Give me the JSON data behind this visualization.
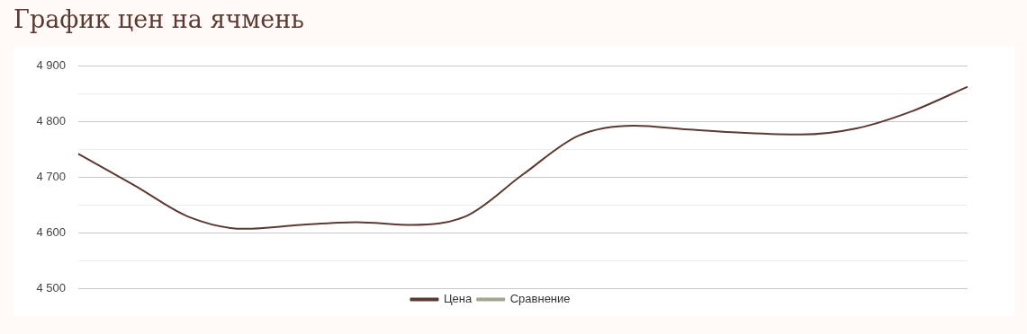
{
  "chart_data": {
    "type": "line",
    "title": "График цен на ячмень",
    "categories": [
      null,
      null,
      null,
      null,
      null,
      null,
      null,
      null,
      null,
      null,
      null,
      null,
      null,
      null,
      null,
      null,
      null
    ],
    "series": [
      {
        "name": "Цена",
        "color": "#5b3a32",
        "values": [
          4742,
          4686,
          4628,
          4607,
          4614,
          4619,
          4614,
          4631,
          4705,
          4775,
          4793,
          4786,
          4780,
          4777,
          4788,
          4819,
          4863
        ]
      },
      {
        "name": "Сравнение",
        "color": "#a3a68e",
        "values": [
          null,
          null,
          null,
          null,
          null,
          null,
          null,
          null,
          null,
          null,
          null,
          null,
          null,
          null,
          null,
          null,
          null
        ]
      }
    ],
    "ylim": [
      4500,
      4900
    ],
    "yticks": [
      4500,
      {
        "value": 4550,
        "label": null
      },
      {
        "value": 4600,
        "label": "4 600"
      },
      {
        "value": 4650,
        "label": null
      },
      {
        "value": 4700,
        "label": "4 700"
      },
      {
        "value": 4750,
        "label": null
      },
      {
        "value": 4800,
        "label": "4 800"
      },
      {
        "value": 4850,
        "label": null
      },
      {
        "value": 4900,
        "label": "4 900"
      }
    ],
    "grid": "y",
    "legend": "bottom",
    "marker": "none",
    "line_style": "solid",
    "tick_labels": "y"
  }
}
